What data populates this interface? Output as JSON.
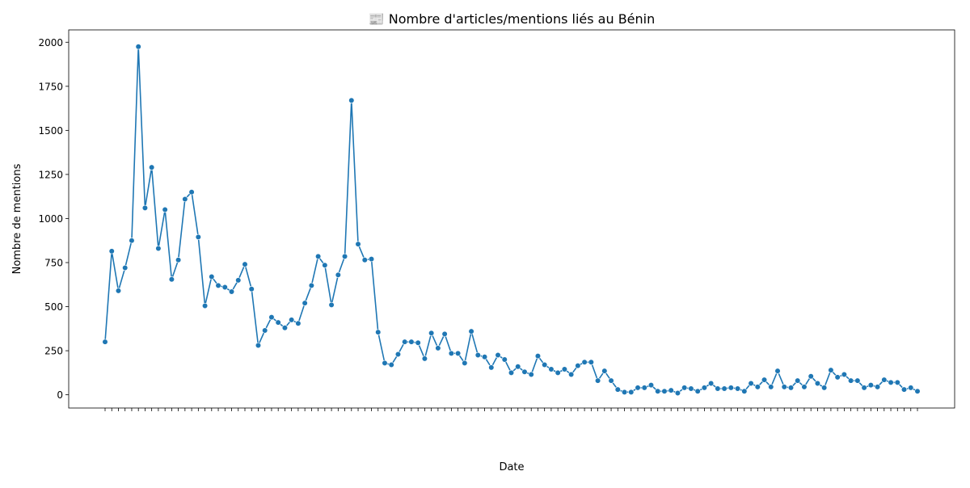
{
  "chart_data": {
    "type": "line",
    "title": "📰 Nombre d'articles/mentions liés au Bénin",
    "xlabel": "Date",
    "ylabel": "Nombre de mentions",
    "ylim": [
      -75,
      2070
    ],
    "yticks": [
      0,
      250,
      500,
      750,
      1000,
      1250,
      1500,
      1750,
      2000
    ],
    "grid": false,
    "legend": "none",
    "colors": {
      "line": "#1f77b4",
      "marker": "#1f77b4"
    },
    "xtick_label_pattern": "YYYY-MM (labels overlap into an illegible band)",
    "values": [
      300,
      815,
      590,
      720,
      875,
      1975,
      1060,
      1290,
      830,
      1050,
      655,
      765,
      1110,
      1150,
      895,
      505,
      670,
      620,
      610,
      585,
      650,
      740,
      600,
      280,
      365,
      440,
      410,
      380,
      425,
      405,
      520,
      620,
      785,
      735,
      510,
      680,
      785,
      1670,
      855,
      765,
      770,
      355,
      180,
      170,
      230,
      300,
      300,
      295,
      205,
      350,
      265,
      345,
      235,
      235,
      180,
      360,
      225,
      215,
      155,
      225,
      200,
      125,
      160,
      130,
      115,
      220,
      170,
      145,
      125,
      145,
      115,
      165,
      185,
      185,
      80,
      135,
      80,
      30,
      15,
      15,
      40,
      40,
      55,
      20,
      20,
      25,
      10,
      40,
      35,
      20,
      40,
      65,
      35,
      35,
      40,
      35,
      20,
      65,
      45,
      85,
      45,
      135,
      45,
      40,
      80,
      45,
      105,
      65,
      40,
      140,
      100,
      115,
      80,
      80,
      40,
      55,
      45,
      85,
      70,
      70,
      30,
      40,
      20
    ]
  }
}
